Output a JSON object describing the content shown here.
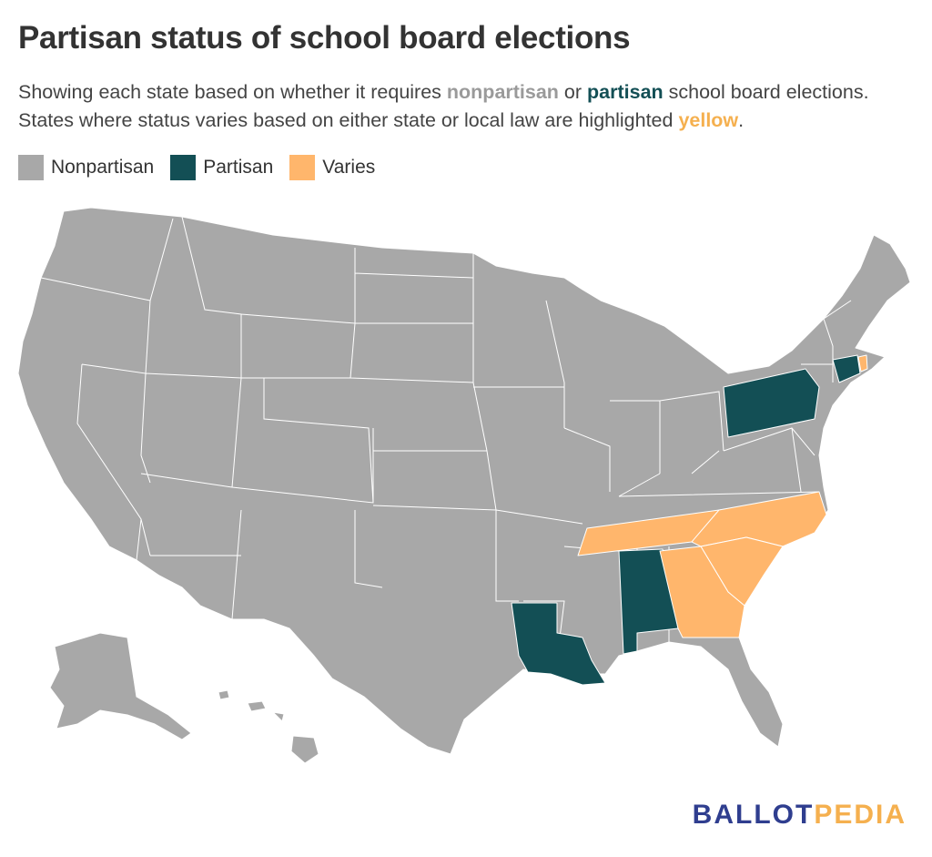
{
  "title": "Partisan status of school board elections",
  "subtitle": {
    "part1": "Showing each state based on whether it requires ",
    "nonpartisan": "nonpartisan",
    "part2": " or ",
    "partisan": "partisan",
    "part3": " school board elections. States where status varies based on either state or local law are highlighted ",
    "yellow": "yellow",
    "part4": "."
  },
  "legend": [
    {
      "label": "Nonpartisan",
      "color": "#a8a8a8"
    },
    {
      "label": "Partisan",
      "color": "#134f55"
    },
    {
      "label": "Varies",
      "color": "#ffb66c"
    }
  ],
  "colors": {
    "nonpartisan": "#a8a8a8",
    "partisan": "#134f55",
    "varies": "#ffb66c"
  },
  "states": {
    "partisan": [
      "Pennsylvania",
      "Connecticut",
      "Alabama",
      "Louisiana"
    ],
    "varies": [
      "Tennessee",
      "North Carolina",
      "South Carolina",
      "Georgia",
      "Rhode Island"
    ],
    "nonpartisan": "all other states"
  },
  "brand": {
    "part1": "BALLOT",
    "part2": "PEDIA"
  }
}
